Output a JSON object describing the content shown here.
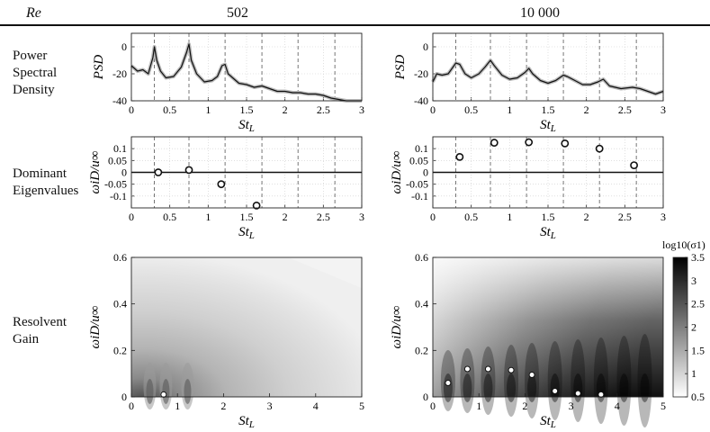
{
  "header": {
    "re_label": "Re",
    "col1": "502",
    "col2": "10 000"
  },
  "rows": {
    "psd": [
      "Power",
      "Spectral",
      "Density"
    ],
    "eig": [
      "Dominant",
      "Eigenvalues"
    ],
    "res": [
      "Resolvent",
      "Gain"
    ]
  },
  "colorbar": {
    "label": "log10(σ1)",
    "ticks": [
      "3.5",
      "3",
      "2.5",
      "2",
      "1.5",
      "1",
      "0.5"
    ]
  },
  "chart_data": [
    {
      "type": "line",
      "panel": "psd-502",
      "ylabel": "PSD",
      "xlabel": "St_L",
      "xlim": [
        0,
        3
      ],
      "ylim": [
        -40,
        10
      ],
      "x_ticks": [
        "0",
        "0.5",
        "1",
        "1.5",
        "2",
        "2.5",
        "3"
      ],
      "y_ticks": [
        "0",
        "-20",
        "-40"
      ],
      "vlines": [
        0.3,
        0.75,
        1.22,
        1.7,
        2.17,
        2.65
      ],
      "series": [
        {
          "x": [
            0,
            0.08,
            0.15,
            0.22,
            0.28,
            0.3,
            0.33,
            0.38,
            0.45,
            0.55,
            0.65,
            0.72,
            0.75,
            0.78,
            0.85,
            0.95,
            1.05,
            1.12,
            1.18,
            1.22,
            1.26,
            1.32,
            1.4,
            1.5,
            1.6,
            1.7,
            1.8,
            1.9,
            2.0,
            2.1,
            2.2,
            2.3,
            2.4,
            2.5,
            2.6,
            2.7,
            2.8,
            2.9,
            3.0
          ],
          "y": [
            -14,
            -18,
            -17,
            -20,
            -8,
            0,
            -10,
            -18,
            -23,
            -22,
            -15,
            -4,
            2,
            -10,
            -20,
            -26,
            -25,
            -22,
            -14,
            -13,
            -20,
            -23,
            -27,
            -28,
            -30,
            -29,
            -31,
            -33,
            -33,
            -34,
            -34,
            -35,
            -35,
            -36,
            -38,
            -39,
            -40,
            -40,
            -40
          ]
        }
      ]
    },
    {
      "type": "line",
      "panel": "psd-10000",
      "ylabel": "PSD",
      "xlabel": "St_L",
      "xlim": [
        0,
        3
      ],
      "ylim": [
        -40,
        10
      ],
      "x_ticks": [
        "0",
        "0.5",
        "1",
        "1.5",
        "2",
        "2.5",
        "3"
      ],
      "y_ticks": [
        "0",
        "-20",
        "-40"
      ],
      "vlines": [
        0.3,
        0.75,
        1.22,
        1.7,
        2.17,
        2.65
      ],
      "series": [
        {
          "x": [
            0,
            0.05,
            0.12,
            0.2,
            0.3,
            0.35,
            0.42,
            0.5,
            0.6,
            0.68,
            0.75,
            0.8,
            0.9,
            1.0,
            1.1,
            1.2,
            1.25,
            1.3,
            1.4,
            1.5,
            1.6,
            1.7,
            1.75,
            1.85,
            1.95,
            2.05,
            2.15,
            2.22,
            2.3,
            2.45,
            2.6,
            2.7,
            2.8,
            2.9,
            3.0
          ],
          "y": [
            -26,
            -20,
            -21,
            -20,
            -12,
            -13,
            -20,
            -23,
            -20,
            -15,
            -10,
            -14,
            -21,
            -24,
            -23,
            -19,
            -16,
            -20,
            -25,
            -27,
            -25,
            -21,
            -22,
            -25,
            -28,
            -28,
            -26,
            -24,
            -29,
            -31,
            -30,
            -31,
            -33,
            -35,
            -33
          ]
        }
      ]
    },
    {
      "type": "scatter",
      "panel": "eig-502",
      "ylabel": "ωiD/u∞",
      "xlabel": "St_L",
      "xlim": [
        0,
        3
      ],
      "ylim": [
        -0.15,
        0.15
      ],
      "x_ticks": [
        "0",
        "0.5",
        "1",
        "1.5",
        "2",
        "2.5",
        "3"
      ],
      "y_ticks": [
        "0.1",
        "0.05",
        "0",
        "-0.05",
        "-0.1"
      ],
      "vlines": [
        0.3,
        0.75,
        1.22,
        1.7,
        2.17,
        2.65
      ],
      "points": [
        {
          "x": 0.35,
          "y": 0.0
        },
        {
          "x": 0.75,
          "y": 0.01
        },
        {
          "x": 1.17,
          "y": -0.05
        },
        {
          "x": 1.63,
          "y": -0.14
        }
      ]
    },
    {
      "type": "scatter",
      "panel": "eig-10000",
      "ylabel": "ωiD/u∞",
      "xlabel": "St_L",
      "xlim": [
        0,
        3
      ],
      "ylim": [
        -0.15,
        0.15
      ],
      "x_ticks": [
        "0",
        "0.5",
        "1",
        "1.5",
        "2",
        "2.5",
        "3"
      ],
      "y_ticks": [
        "0.1",
        "0.05",
        "0",
        "-0.05",
        "-0.1"
      ],
      "vlines": [
        0.3,
        0.75,
        1.22,
        1.7,
        2.17,
        2.65
      ],
      "points": [
        {
          "x": 0.35,
          "y": 0.065
        },
        {
          "x": 0.8,
          "y": 0.125
        },
        {
          "x": 1.25,
          "y": 0.127
        },
        {
          "x": 1.72,
          "y": 0.122
        },
        {
          "x": 2.17,
          "y": 0.1
        },
        {
          "x": 2.62,
          "y": 0.03
        }
      ]
    },
    {
      "type": "heatmap",
      "panel": "res-502",
      "ylabel": "ωiD/u∞",
      "xlabel": "St_L",
      "xlim": [
        0,
        5
      ],
      "ylim": [
        0,
        0.6
      ],
      "x_ticks": [
        "0",
        "1",
        "2",
        "3",
        "4",
        "5"
      ],
      "y_ticks": [
        "0.6",
        "0.4",
        "0.2",
        "0"
      ],
      "points": [
        {
          "x": 0.7,
          "y": 0.01
        }
      ]
    },
    {
      "type": "heatmap",
      "panel": "res-10000",
      "ylabel": "ωiD/u∞",
      "xlabel": "St_L",
      "xlim": [
        0,
        5
      ],
      "ylim": [
        0,
        0.6
      ],
      "x_ticks": [
        "0",
        "1",
        "2",
        "3",
        "4",
        "5"
      ],
      "y_ticks": [
        "0.6",
        "0.4",
        "0.2",
        "0"
      ],
      "points": [
        {
          "x": 0.33,
          "y": 0.06
        },
        {
          "x": 0.75,
          "y": 0.12
        },
        {
          "x": 1.2,
          "y": 0.12
        },
        {
          "x": 1.7,
          "y": 0.115
        },
        {
          "x": 2.15,
          "y": 0.095
        },
        {
          "x": 2.65,
          "y": 0.025
        },
        {
          "x": 3.15,
          "y": 0.015
        },
        {
          "x": 3.65,
          "y": 0.01
        }
      ]
    }
  ]
}
